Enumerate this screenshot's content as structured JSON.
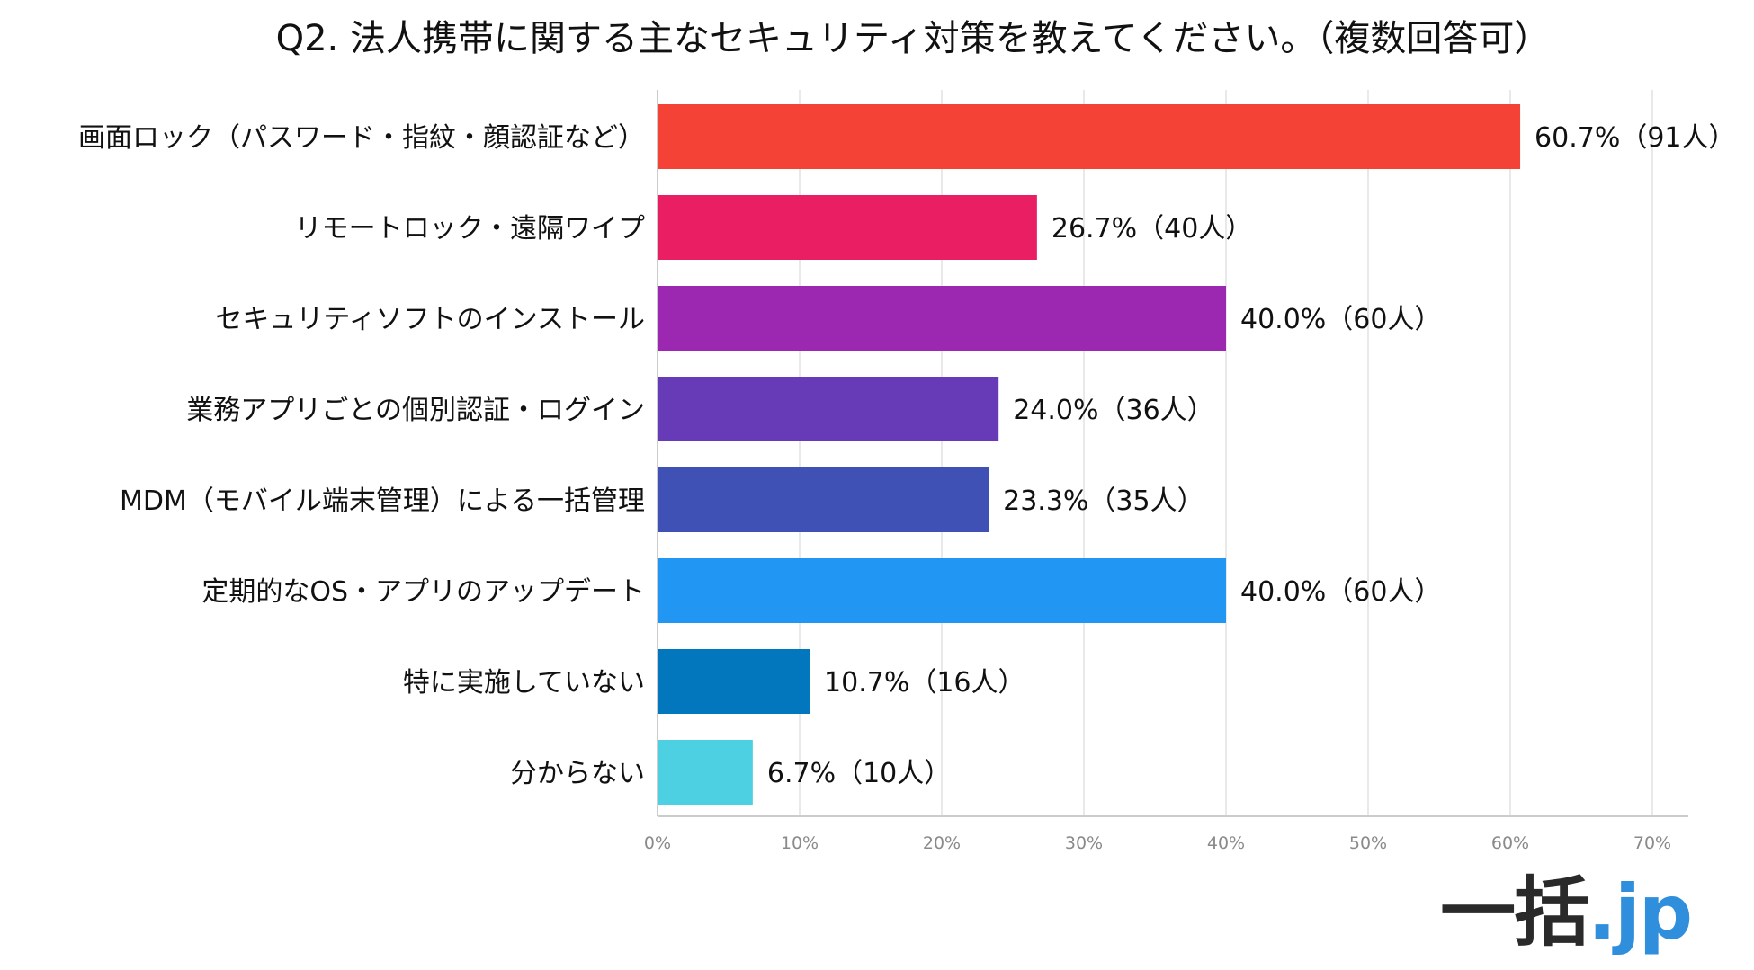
{
  "chart_data": {
    "type": "bar",
    "orientation": "horizontal",
    "title": "Q2. 法人携帯に関する主なセキュリティ対策を教えてください。（複数回答可）",
    "categories": [
      "画面ロック（パスワード・指紋・顔認証など）",
      "リモートロック・遠隔ワイプ",
      "セキュリティソフトのインストール",
      "業務アプリごとの個別認証・ログイン",
      "MDM（モバイル端末管理）による一括管理",
      "定期的なOS・アプリのアップデート",
      "特に実施していない",
      "分からない"
    ],
    "values": [
      60.7,
      26.7,
      40.0,
      24.0,
      23.3,
      40.0,
      10.7,
      6.7
    ],
    "data_labels": [
      "60.7%（91人）",
      "26.7%（40人）",
      "40.0%（60人）",
      "24.0%（36人）",
      "23.3%（35人）",
      "40.0%（60人）",
      "10.7%（16人）",
      "6.7%（10人）"
    ],
    "colors": [
      "#f44336",
      "#e91e63",
      "#9c27b0",
      "#673ab7",
      "#3f51b5",
      "#2196f3",
      "#0277bd",
      "#4dd0e1"
    ],
    "xlim": [
      0,
      70
    ],
    "xticks": [
      "0%",
      "10%",
      "20%",
      "30%",
      "40%",
      "50%",
      "60%",
      "70%"
    ],
    "grid": true
  },
  "logo": {
    "kanji": "一括",
    "dot": ".",
    "jp": "jp"
  }
}
